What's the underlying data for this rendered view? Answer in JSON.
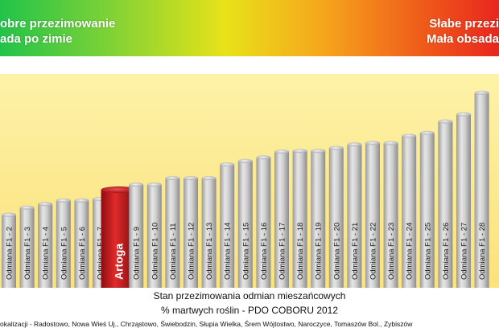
{
  "banner": {
    "left_line1": "obre przezimowanie",
    "left_line2": "ada po zimie",
    "right_line1": "Słabe przezi",
    "right_line2": "Mała obsada",
    "gradient_colors": [
      "#22c34a",
      "#e8e21a",
      "#e8261e"
    ]
  },
  "caption": {
    "line1": "Stan przezimowania odmian mieszańcowych",
    "line2": "% martwych roślin - PDO COBORU 2012"
  },
  "footer": {
    "text": "okalizacji - Radostowo, Nowa Wieś Uj., Chrząstowo, Świebodzin, Słupia Wielka, Śrem Wójtostwo, Naroczyce, Tomaszów Bol., Zybiszów"
  },
  "chart_data": {
    "type": "bar",
    "title": "Stan przezimowania odmian mieszańcowych",
    "subtitle": "% martwych roślin - PDO COBORU 2012",
    "xlabel": "",
    "ylabel": "",
    "categories": [
      "Odmiana F1 - 2",
      "Odmiana F1 - 3",
      "Odmiana F1 - 4",
      "Odmiana F1 - 5",
      "Odmiana F1 - 6",
      "Odmiana F1 - 7",
      "Artoga",
      "Odmiana F1 - 9",
      "Odmiana F1 - 10",
      "Odmiana F1 - 11",
      "Odmiana F1 - 12",
      "Odmiana F1 - 13",
      "Odmiana F1 - 14",
      "Odmiana F1 - 15",
      "Odmiana F1 - 16",
      "Odmiana F1 - 17",
      "Odmiana F1 - 18",
      "Odmiana F1 - 19",
      "Odmiana F1 - 20",
      "Odmiana F1 - 21",
      "Odmiana F1 - 22",
      "Odmiana F1 - 23",
      "Odmiana F1 - 24",
      "Odmiana F1 - 25",
      "Odmiana F1 - 26",
      "Odmiana F1 - 27",
      "Odmiana F1 - 28"
    ],
    "values": [
      9.5,
      10.5,
      11.0,
      11.5,
      11.5,
      11.7,
      13.0,
      13.7,
      13.7,
      14.6,
      14.6,
      14.6,
      16.5,
      17.0,
      17.5,
      18.3,
      18.4,
      18.4,
      18.8,
      19.3,
      19.5,
      19.5,
      20.5,
      20.9,
      22.5,
      23.5,
      26.5
    ],
    "highlight": "Artoga",
    "colors": {
      "bar": "#b8b8b8",
      "highlight": "#c0181c",
      "bar_label": "#222222",
      "highlight_label": "#ffffff"
    },
    "ylim": [
      0,
      28
    ],
    "grid": false,
    "legend": "none"
  }
}
